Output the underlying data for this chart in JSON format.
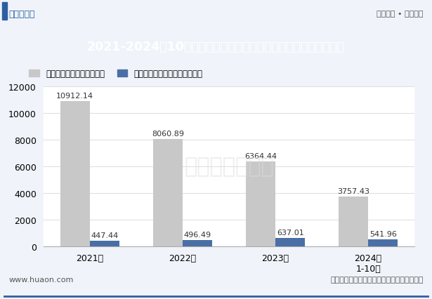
{
  "title": "2021-2024年10月四川省房地产商品住宅及商品住宅现房销售面积",
  "categories": [
    "2021年",
    "2022年",
    "2023年",
    "2024年\n1-10月"
  ],
  "bar1_values": [
    10912.14,
    8060.89,
    6364.44,
    3757.43
  ],
  "bar2_values": [
    447.44,
    496.49,
    637.01,
    541.96
  ],
  "bar1_label": "商品住宅销售面积（万㎡）",
  "bar2_label": "商品住宅现房销售面积（万㎡）",
  "bar1_color": "#c8c8c8",
  "bar2_color": "#4a6fa5",
  "ylim": [
    0,
    12000
  ],
  "yticks": [
    0,
    2000,
    4000,
    6000,
    8000,
    10000,
    12000
  ],
  "header_bg": "#2d5fa0",
  "header_text_color": "#ffffff",
  "top_bar_bg": "#e8edf5",
  "top_left_text": "华经情报网",
  "top_right_text": "专业严谨 • 客观科学",
  "bottom_left_text": "www.huaon.com",
  "bottom_right_text": "数据来源：国家统计局，华经产业研究院整理",
  "bg_color": "#f0f4fa",
  "plot_bg": "#ffffff",
  "watermark_text": "华经产业研究院",
  "figsize": [
    6.15,
    4.27
  ],
  "dpi": 100
}
